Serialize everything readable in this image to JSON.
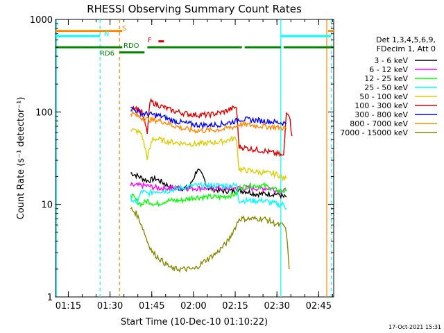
{
  "chart_data": {
    "type": "line",
    "title": "RHESSI Observing Summary Count Rates",
    "xlabel": "Start Time (10-Dec-10 01:10:22)",
    "ylabel": "Count Rate (s⁻¹ detector⁻¹)",
    "yscale": "log",
    "ylim": [
      1,
      1000
    ],
    "xlim_minutes": [
      0,
      100
    ],
    "x_unit": "minutes since 01:10:22",
    "x_ticks": [
      {
        "t": 4.6,
        "label": "01:15"
      },
      {
        "t": 19.6,
        "label": "01:30"
      },
      {
        "t": 34.6,
        "label": "01:45"
      },
      {
        "t": 49.6,
        "label": "02:00"
      },
      {
        "t": 64.6,
        "label": "02:15"
      },
      {
        "t": 79.6,
        "label": "02:30"
      },
      {
        "t": 94.6,
        "label": "02:45"
      }
    ],
    "y_ticks": [
      {
        "v": 1,
        "label": "1"
      },
      {
        "v": 10,
        "label": "10"
      },
      {
        "v": 100,
        "label": "100"
      },
      {
        "v": 1000,
        "label": "1000"
      }
    ],
    "legend_header": [
      "Det 1,3,4,5,6,9,",
      "FDecim 1, Att 0"
    ],
    "series": [
      {
        "name": "3 - 6 keV",
        "color": "#000000",
        "points": [
          [
            27,
            22
          ],
          [
            30,
            20
          ],
          [
            33,
            18
          ],
          [
            36,
            19
          ],
          [
            39,
            17
          ],
          [
            42,
            15
          ],
          [
            45,
            15
          ],
          [
            48,
            15
          ],
          [
            51,
            24
          ],
          [
            53,
            20
          ],
          [
            55,
            15
          ],
          [
            60,
            14
          ],
          [
            65,
            14
          ],
          [
            68,
            14
          ],
          [
            72,
            13
          ],
          [
            76,
            13
          ],
          [
            80,
            13
          ],
          [
            82,
            12
          ],
          [
            83,
            12
          ]
        ]
      },
      {
        "name": "6 - 12 keV",
        "color": "#ff00ff",
        "points": [
          [
            27,
            16
          ],
          [
            32,
            16
          ],
          [
            37,
            15
          ],
          [
            42,
            15
          ],
          [
            47,
            15
          ],
          [
            52,
            15
          ],
          [
            57,
            15
          ],
          [
            62,
            15
          ],
          [
            67,
            15
          ],
          [
            72,
            15
          ],
          [
            77,
            15
          ],
          [
            80,
            14
          ],
          [
            82,
            14
          ],
          [
            83,
            14
          ]
        ]
      },
      {
        "name": "12 - 25 keV",
        "color": "#00ff00",
        "points": [
          [
            27,
            13
          ],
          [
            29,
            11
          ],
          [
            31,
            10
          ],
          [
            33,
            11
          ],
          [
            36,
            10
          ],
          [
            40,
            11
          ],
          [
            45,
            11
          ],
          [
            50,
            12
          ],
          [
            55,
            12
          ],
          [
            60,
            12
          ],
          [
            65,
            13
          ],
          [
            66,
            15
          ],
          [
            70,
            16
          ],
          [
            75,
            16
          ],
          [
            80,
            14
          ],
          [
            82,
            14
          ],
          [
            83,
            14
          ]
        ]
      },
      {
        "name": "25 - 50 keV",
        "color": "#00ffff",
        "points": [
          [
            27,
            12
          ],
          [
            29,
            10
          ],
          [
            31,
            14
          ],
          [
            33,
            13
          ],
          [
            36,
            14
          ],
          [
            40,
            14
          ],
          [
            45,
            15
          ],
          [
            50,
            16
          ],
          [
            55,
            16
          ],
          [
            60,
            16
          ],
          [
            65,
            16
          ],
          [
            66,
            11
          ],
          [
            70,
            11
          ],
          [
            75,
            11
          ],
          [
            80,
            10
          ],
          [
            82,
            10
          ],
          [
            83,
            9
          ]
        ]
      },
      {
        "name": "50 - 100 keV",
        "color": "#ddcc00",
        "points": [
          [
            27,
            65
          ],
          [
            29,
            62
          ],
          [
            31,
            58
          ],
          [
            33,
            32
          ],
          [
            35,
            52
          ],
          [
            40,
            48
          ],
          [
            45,
            46
          ],
          [
            50,
            45
          ],
          [
            55,
            46
          ],
          [
            60,
            48
          ],
          [
            65,
            52
          ],
          [
            66,
            24
          ],
          [
            70,
            23
          ],
          [
            75,
            22
          ],
          [
            80,
            21
          ],
          [
            82,
            19
          ],
          [
            83,
            19
          ]
        ]
      },
      {
        "name": "100 - 300 keV",
        "color": "#dd0000",
        "points": [
          [
            27,
            118
          ],
          [
            29,
            110
          ],
          [
            31,
            100
          ],
          [
            33,
            60
          ],
          [
            34,
            130
          ],
          [
            38,
            115
          ],
          [
            42,
            103
          ],
          [
            46,
            97
          ],
          [
            50,
            93
          ],
          [
            55,
            93
          ],
          [
            60,
            99
          ],
          [
            65,
            113
          ],
          [
            66,
            42
          ],
          [
            70,
            40
          ],
          [
            75,
            38
          ],
          [
            80,
            35
          ],
          [
            82,
            33
          ],
          [
            83,
            103
          ],
          [
            84,
            95
          ],
          [
            85,
            55
          ]
        ]
      },
      {
        "name": "300 - 800 keV",
        "color": "#0000ff",
        "points": [
          [
            27,
            108
          ],
          [
            29,
            103
          ],
          [
            31,
            96
          ],
          [
            33,
            95
          ],
          [
            38,
            90
          ],
          [
            42,
            81
          ],
          [
            46,
            76
          ],
          [
            50,
            73
          ],
          [
            55,
            72
          ],
          [
            60,
            74
          ],
          [
            65,
            80
          ],
          [
            66,
            84
          ],
          [
            70,
            82
          ],
          [
            75,
            80
          ],
          [
            80,
            77
          ],
          [
            82,
            76
          ],
          [
            83,
            75
          ]
        ]
      },
      {
        "name": "800 - 7000 keV",
        "color": "#ff8800",
        "points": [
          [
            27,
            98
          ],
          [
            29,
            92
          ],
          [
            31,
            86
          ],
          [
            33,
            83
          ],
          [
            38,
            80
          ],
          [
            42,
            72
          ],
          [
            46,
            66
          ],
          [
            50,
            63
          ],
          [
            55,
            63
          ],
          [
            60,
            65
          ],
          [
            65,
            70
          ],
          [
            66,
            74
          ],
          [
            70,
            72
          ],
          [
            75,
            70
          ],
          [
            80,
            68
          ],
          [
            82,
            67
          ],
          [
            83,
            66
          ]
        ]
      },
      {
        "name": "7000 - 15000 keV",
        "color": "#888800",
        "points": [
          [
            27,
            9
          ],
          [
            29,
            8
          ],
          [
            31,
            6
          ],
          [
            33,
            4
          ],
          [
            35,
            3
          ],
          [
            38,
            2.5
          ],
          [
            42,
            2
          ],
          [
            46,
            2
          ],
          [
            50,
            2
          ],
          [
            54,
            2.5
          ],
          [
            58,
            3
          ],
          [
            62,
            4
          ],
          [
            65,
            6
          ],
          [
            66,
            7
          ],
          [
            70,
            7
          ],
          [
            75,
            7
          ],
          [
            80,
            6
          ],
          [
            82,
            6
          ],
          [
            83,
            5
          ],
          [
            84,
            2
          ]
        ]
      }
    ],
    "annotations": {
      "S_label": "S",
      "N_label": "N",
      "RDO_label": "RDO",
      "RD6_label": "RD6",
      "F_label": "F"
    },
    "flag_bars": {
      "S": {
        "color": "#ff8800",
        "value": 750,
        "segments": [
          [
            0,
            24
          ],
          [
            98,
            100
          ]
        ]
      },
      "N": {
        "color": "#00ffff",
        "value": 660,
        "segments": [
          [
            0,
            16
          ],
          [
            81,
            99
          ]
        ]
      },
      "RDO": {
        "color": "#008800",
        "value": 500,
        "segments": [
          [
            0,
            24
          ],
          [
            33,
            67
          ],
          [
            68,
            81
          ],
          [
            82,
            100
          ]
        ]
      },
      "RD6": {
        "color": "#008800",
        "value": 440,
        "segments": [
          [
            23,
            32
          ]
        ]
      },
      "F": {
        "color": "#dd0000",
        "value": 580,
        "segments": [
          [
            37,
            39
          ]
        ]
      }
    },
    "vertical_markers": [
      {
        "t": 0.4,
        "color": "#00ffff",
        "style": "solid"
      },
      {
        "t": 16,
        "color": "#00ffff",
        "style": "dashed"
      },
      {
        "t": 23,
        "color": "#ff8800",
        "style": "dashed"
      },
      {
        "t": 81,
        "color": "#00ffff",
        "style": "solid"
      },
      {
        "t": 97.5,
        "color": "#ff8800",
        "style": "solid"
      },
      {
        "t": 99.2,
        "color": "#00ffff",
        "style": "dashed"
      }
    ]
  },
  "timestamp": "17-Oct-2021 15:31"
}
